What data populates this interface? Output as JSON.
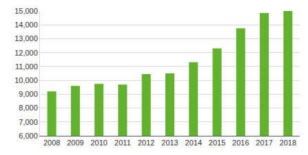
{
  "chart_data": {
    "type": "bar",
    "categories": [
      "2008",
      "2009",
      "2010",
      "2011",
      "2012",
      "2013",
      "2014",
      "2015",
      "2016",
      "2017",
      "2018"
    ],
    "values": [
      9200,
      9600,
      9750,
      9700,
      10450,
      10500,
      11300,
      12300,
      13750,
      14850,
      15000
    ],
    "color": "#62b22f",
    "ylim": [
      6000,
      15000
    ],
    "yticks": [
      {
        "value": 6000,
        "label": "6,000"
      },
      {
        "value": 7000,
        "label": "7,000"
      },
      {
        "value": 8000,
        "label": "8,000"
      },
      {
        "value": 9000,
        "label": "9,000"
      },
      {
        "value": 10000,
        "label": "10,000"
      },
      {
        "value": 11000,
        "label": "11,000"
      },
      {
        "value": 12000,
        "label": "12,000"
      },
      {
        "value": 13000,
        "label": "13,000"
      },
      {
        "value": 14000,
        "label": "14,000"
      },
      {
        "value": 15000,
        "label": "15,000"
      }
    ],
    "grid": true
  }
}
